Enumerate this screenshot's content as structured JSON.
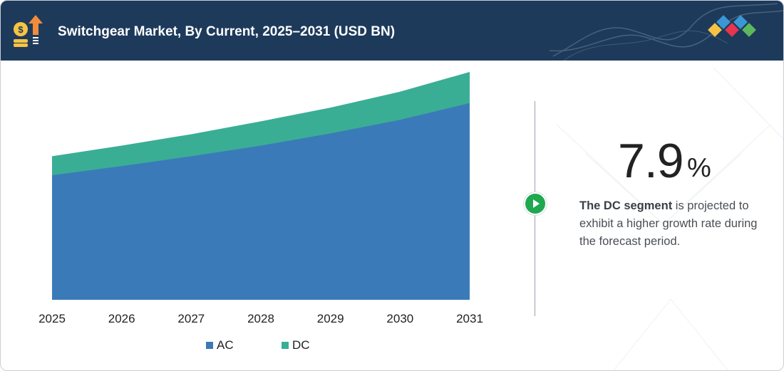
{
  "header": {
    "title": "Switchgear Market, By Current, 2025–2031 (USD BN)"
  },
  "colors": {
    "header_bg": "#1d3a5b",
    "ac": "#3b7ab9",
    "dc": "#3aae95",
    "accent_green": "#1fa84f",
    "logo_yellow": "#f6c343",
    "logo_red": "#e8344e",
    "logo_blue": "#3b96d4",
    "logo_green": "#5cb85c"
  },
  "chart_data": {
    "type": "area",
    "stacked": true,
    "x": [
      "2025",
      "2026",
      "2027",
      "2028",
      "2029",
      "2030",
      "2031"
    ],
    "series": [
      {
        "name": "AC",
        "values": [
          164,
          176,
          189,
          203,
          219,
          237,
          259
        ]
      },
      {
        "name": "DC",
        "values": [
          25,
          27,
          29,
          32,
          34,
          37,
          41
        ]
      }
    ],
    "ylim": [
      0,
      300
    ],
    "grid": false,
    "legend_position": "bottom"
  },
  "highlight": {
    "value": "7.9",
    "unit": "%",
    "note_bold": "The DC segment",
    "note_rest": " is projected to exhibit a higher growth rate during the forecast period."
  },
  "icons": {
    "header": "money-growth-icon",
    "brand": "brand-logo-icon",
    "button": "play-icon"
  }
}
